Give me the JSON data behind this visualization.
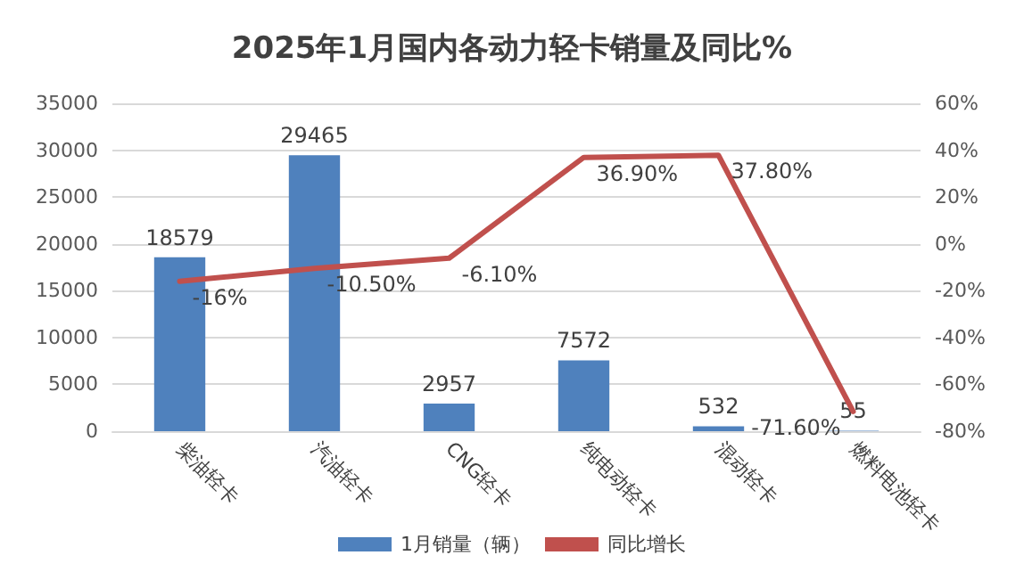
{
  "chart_data": {
    "type": "bar",
    "title": "2025年1月国内各动力轻卡销量及同比%",
    "categories": [
      "柴油轻卡",
      "汽油轻卡",
      "CNG轻卡",
      "纯电动轻卡",
      "混动轻卡",
      "燃料电池轻卡"
    ],
    "series": [
      {
        "name": "1月销量（辆）",
        "color": "#4f81bd",
        "values": [
          18579,
          29465,
          2957,
          7572,
          532,
          55
        ],
        "value_labels": [
          "18579",
          "29465",
          "2957",
          "7572",
          "532",
          "55"
        ]
      },
      {
        "name": "同比增长",
        "type": "line",
        "axis": "y2",
        "color": "#c0504d",
        "values": [
          -16,
          -10.5,
          -6.1,
          36.9,
          37.8,
          -71.6
        ],
        "value_labels": [
          "-16%",
          "-10.50%",
          "-6.10%",
          "36.90%",
          "37.80%",
          "-71.60%"
        ]
      }
    ],
    "ylim": [
      0,
      35000
    ],
    "yticks": [
      0,
      5000,
      10000,
      15000,
      20000,
      25000,
      30000,
      35000
    ],
    "y2lim": [
      -80,
      60
    ],
    "y2ticks": [
      {
        "value": -80,
        "label": "-80%"
      },
      {
        "value": -60,
        "label": "-60%"
      },
      {
        "value": -40,
        "label": "-40%"
      },
      {
        "value": -20,
        "label": "-20%"
      },
      {
        "value": 0,
        "label": "0%"
      },
      {
        "value": 20,
        "label": "20%"
      },
      {
        "value": 40,
        "label": "40%"
      },
      {
        "value": 60,
        "label": "60%"
      }
    ],
    "grid": "y",
    "legend": "bottom",
    "marker": "none",
    "line_style": "solid"
  }
}
